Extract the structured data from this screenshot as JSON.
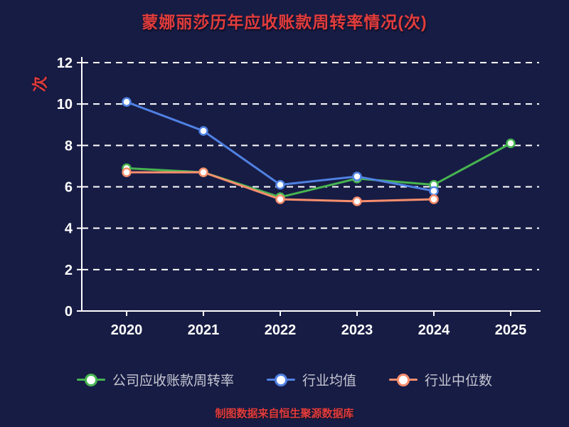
{
  "title": "蒙娜丽莎历年应收账款周转率情况(次)",
  "ylabel": "次",
  "footer": "制图数据来自恒生聚源数据库",
  "colors": {
    "background": "#171c44",
    "title": "#e23c3c",
    "axis": "#ffffff",
    "grid": "#ffffff",
    "tick_label": "#ffffff",
    "legend_label": "#c6c6d2",
    "footer": "#e23c3c"
  },
  "chart_data": {
    "type": "line",
    "title": "蒙娜丽莎历年应收账款周转率情况(次)",
    "xlabel": "",
    "ylabel": "次",
    "categories": [
      "2020",
      "2021",
      "2022",
      "2023",
      "2024",
      "2025"
    ],
    "series": [
      {
        "name": "公司应收账款周转率",
        "color": "#46b450",
        "values": [
          6.9,
          6.7,
          5.5,
          6.4,
          6.1,
          8.1
        ]
      },
      {
        "name": "行业均值",
        "color": "#4f81e3",
        "values": [
          10.1,
          8.7,
          6.1,
          6.5,
          5.8,
          null
        ]
      },
      {
        "name": "行业中位数",
        "color": "#f98e6d",
        "values": [
          6.7,
          6.7,
          5.4,
          5.3,
          5.4,
          null
        ]
      }
    ],
    "ylim": [
      0,
      12
    ],
    "yticks": [
      0,
      2,
      4,
      6,
      8,
      10,
      12
    ],
    "grid": "dashed-horizontal-white",
    "marker": "hollow-circle",
    "legend_position": "bottom"
  }
}
